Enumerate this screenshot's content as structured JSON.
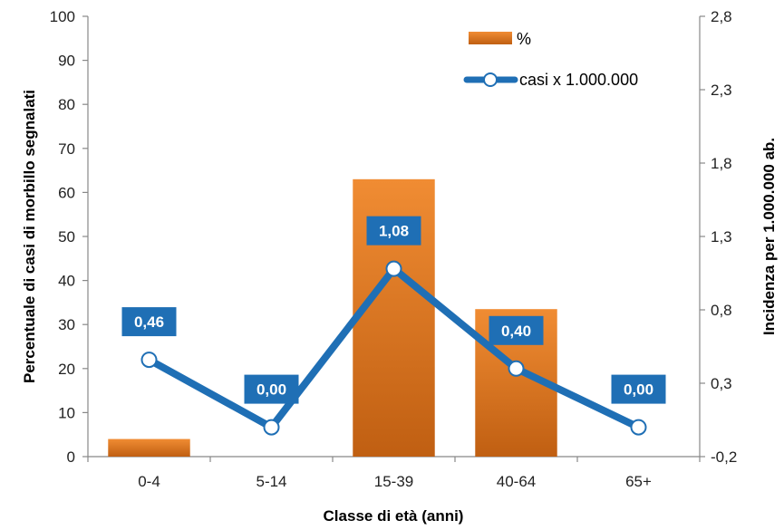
{
  "chart_data": {
    "type": "bar",
    "categories": [
      "0-4",
      "5-14",
      "15-39",
      "40-64",
      "65+"
    ],
    "series": [
      {
        "name": "%",
        "type": "bar",
        "axis": "left",
        "values": [
          4,
          0,
          63,
          33.5,
          0
        ]
      },
      {
        "name": "casi x 1.000.000",
        "type": "line",
        "axis": "right",
        "values": [
          0.46,
          0.0,
          1.08,
          0.4,
          0.0
        ]
      }
    ],
    "data_labels": [
      "0,46",
      "0,00",
      "1,08",
      "0,40",
      "0,00"
    ],
    "xlabel": "Classe di età (anni)",
    "ylabel": "Percentuale di casi di morbillo segnalati",
    "ylabel_right": "Incidenza per 1.000.000 ab.",
    "ylim": [
      0,
      100
    ],
    "ylim_right": [
      -0.2,
      2.8
    ],
    "y_ticks": [
      "0",
      "10",
      "20",
      "30",
      "40",
      "50",
      "60",
      "70",
      "80",
      "90",
      "100"
    ],
    "y_ticks_right": [
      "-0,2",
      "0,3",
      "0,8",
      "1,3",
      "1,8",
      "2,3",
      "2,8"
    ],
    "legend_position": "top-right",
    "grid": false,
    "colors": {
      "bar_top": "#f08c33",
      "bar_bottom": "#c05f12",
      "line": "#1f6fb5",
      "label_bg": "#1f6fb5",
      "marker_fill": "#ffffff"
    }
  }
}
